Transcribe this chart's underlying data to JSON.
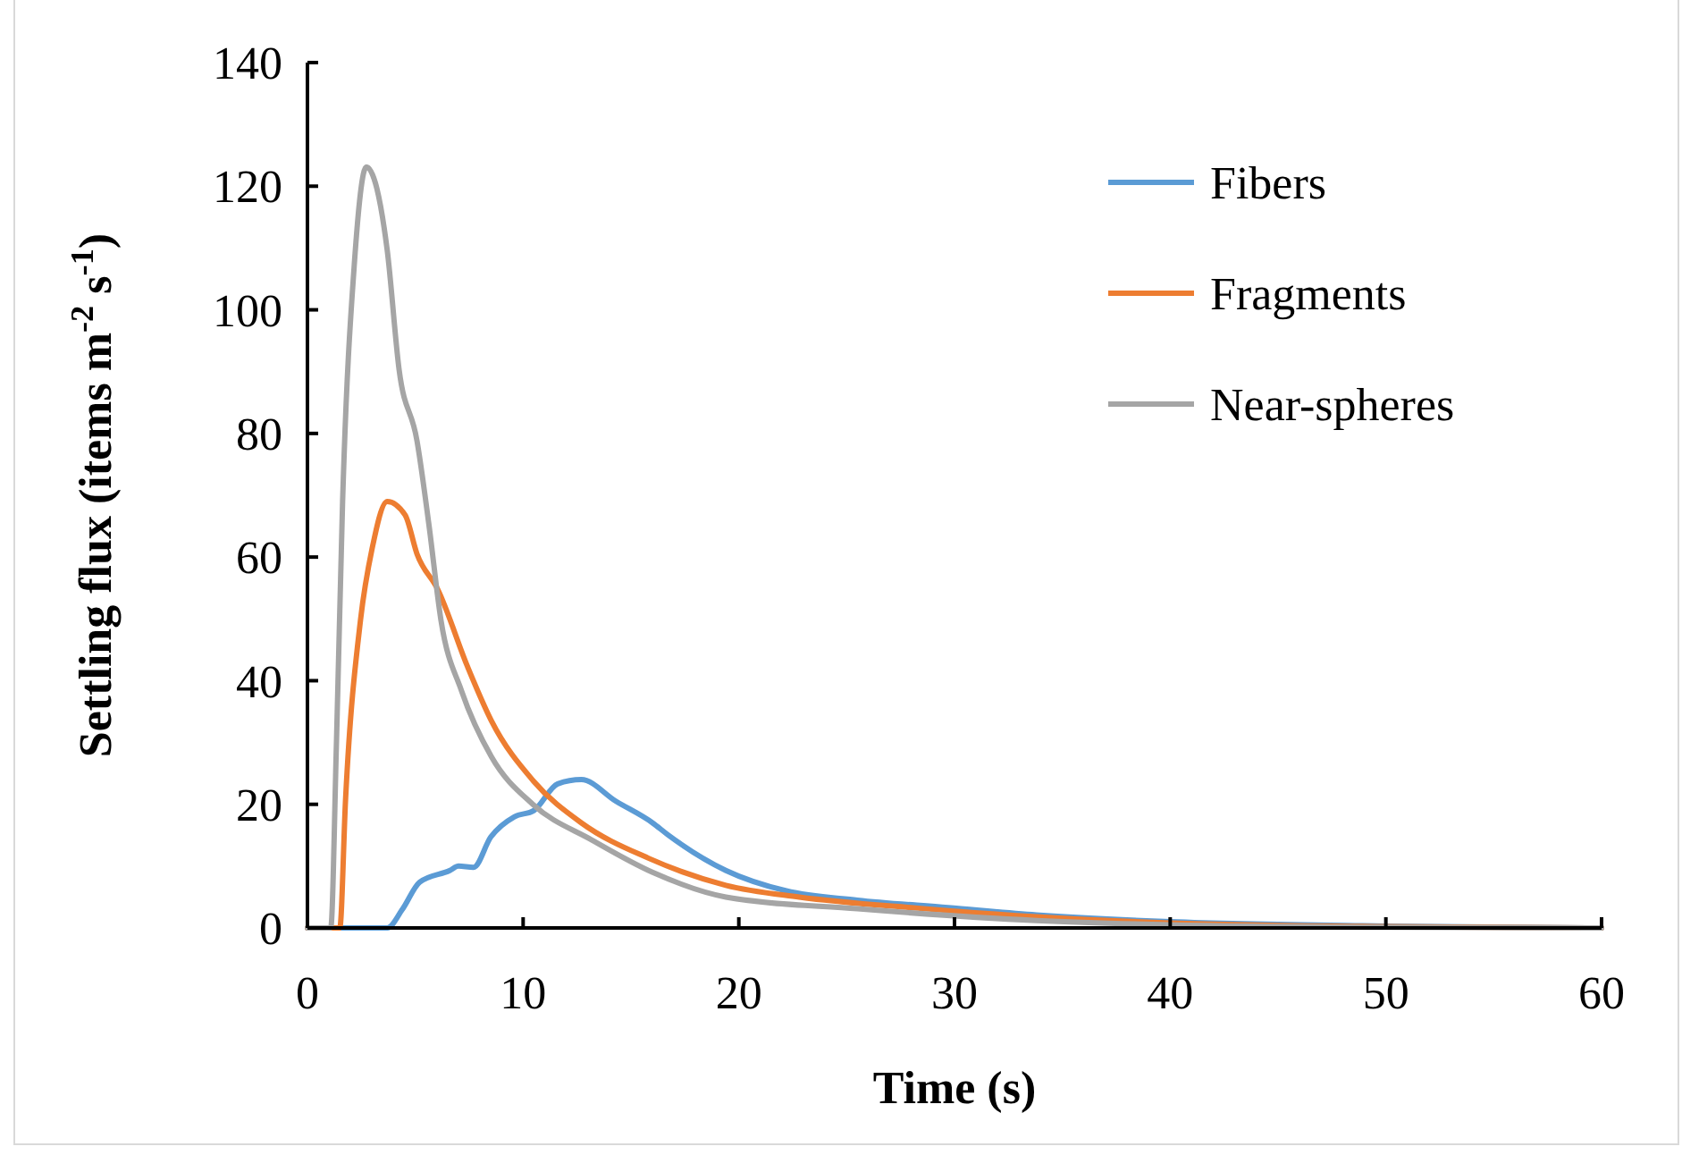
{
  "chart_data": {
    "type": "line",
    "xlabel": "Time (s)",
    "ylabel": "Settling flux (items m$^{-2}$ s$^{-1}$)",
    "xlim": [
      0,
      60
    ],
    "xticks": [
      0,
      10,
      20,
      30,
      40,
      50,
      60
    ],
    "ylim": [
      0,
      140
    ],
    "yticks": [
      0,
      20,
      40,
      60,
      80,
      100,
      120,
      140
    ],
    "grid": false,
    "legend": "top right",
    "line_style": "solid",
    "series": [
      {
        "name": "Fibers",
        "color": "#5b9bd5",
        "x": [
          0,
          3.7,
          4.4,
          5.2,
          6.6,
          7.0,
          7.7,
          8.5,
          9.6,
          10.5,
          11.6,
          12.7,
          14.3,
          16,
          16.7,
          19.4,
          22.2,
          25.5,
          29.7,
          33.8,
          40,
          50,
          60
        ],
        "values": [
          0,
          0,
          3,
          7.4,
          9.3,
          10,
          9.8,
          14.7,
          18,
          19,
          23.3,
          24,
          20.5,
          17,
          15.1,
          9.3,
          6,
          4.5,
          3.3,
          2.1,
          1,
          0.3,
          0
        ]
      },
      {
        "name": "Fragments",
        "color": "#ed7d31",
        "x": [
          0,
          1.5,
          1.77,
          2.46,
          3.0,
          3.7,
          4.53,
          5.08,
          6.05,
          7.43,
          8.53,
          10.47,
          12.7,
          15.8,
          19.4,
          22.8,
          28.3,
          33.8,
          40,
          50,
          60
        ],
        "values": [
          0,
          0,
          21,
          49.8,
          61.4,
          69,
          66.8,
          60.5,
          54.7,
          42.2,
          33.5,
          23.8,
          17,
          11.3,
          6.9,
          5,
          3.2,
          1.8,
          0.8,
          0.2,
          0
        ]
      },
      {
        "name": "Near-spheres",
        "color": "#a5a5a5",
        "x": [
          0,
          1.08,
          1.35,
          1.63,
          2.18,
          2.73,
          3.7,
          4.25,
          5.08,
          5.63,
          6.19,
          7.15,
          8.53,
          10.45,
          13.2,
          16,
          19.4,
          25.5,
          33.8,
          40,
          50,
          60
        ],
        "values": [
          0,
          0,
          30.6,
          69,
          107.7,
          123.1,
          109.6,
          90.3,
          78.8,
          65.3,
          49.8,
          38.3,
          27.7,
          20,
          14.2,
          9,
          5,
          3.1,
          1.2,
          0.5,
          0.1,
          0
        ]
      }
    ]
  }
}
